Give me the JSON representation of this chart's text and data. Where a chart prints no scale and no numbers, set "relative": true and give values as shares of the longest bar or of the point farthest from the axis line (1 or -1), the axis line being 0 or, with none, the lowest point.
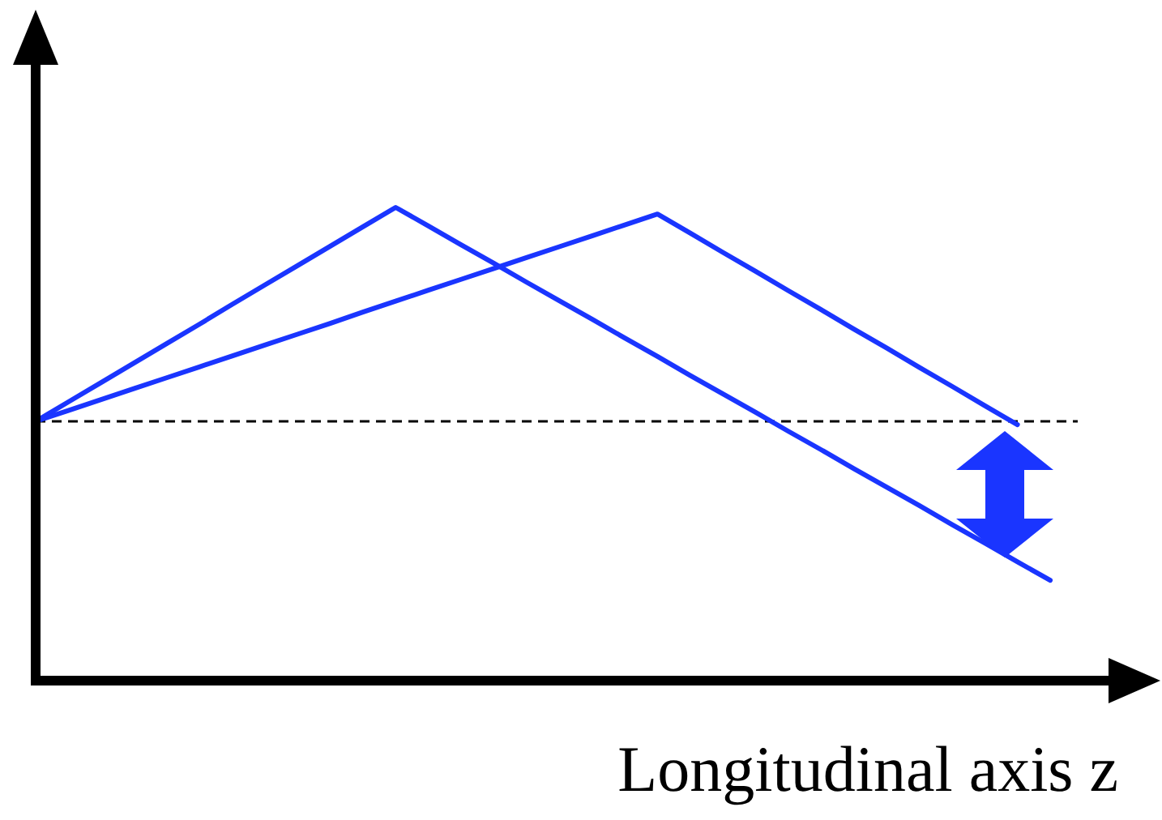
{
  "chart_data": {
    "type": "line",
    "relative": true,
    "xlabel": "Longitudinal axis z",
    "marker": "none",
    "line_style": "solid",
    "categories": [
      null,
      null,
      null,
      null,
      null,
      null,
      null,
      null,
      null,
      null,
      null,
      null,
      null,
      null,
      null,
      null,
      null,
      null,
      null,
      null,
      null,
      null,
      null,
      null,
      null,
      null,
      null,
      null,
      null,
      null,
      null,
      null
    ],
    "series": [
      {
        "color": "#1a35ff",
        "values": [
          0.548,
          0.589,
          0.63,
          0.671,
          0.712,
          0.753,
          0.795,
          0.836,
          0.877,
          0.918,
          0.959,
          1,
          0.961,
          0.921,
          0.882,
          0.842,
          0.803,
          0.764,
          0.724,
          0.685,
          0.645,
          0.606,
          0.567,
          0.527,
          0.488,
          0.448,
          0.409,
          0.37,
          0.33,
          0.291,
          0.251,
          0.212
        ]
      },
      {
        "color": "#1a35ff",
        "values": [
          0.548,
          0.571,
          0.594,
          0.617,
          0.64,
          0.663,
          0.686,
          0.709,
          0.732,
          0.755,
          0.779,
          0.802,
          0.825,
          0.848,
          0.871,
          0.894,
          0.917,
          0.94,
          0.963,
          0.986,
          0.946,
          0.905,
          0.865,
          0.824,
          0.784,
          0.743,
          0.703,
          0.662,
          0.622,
          0.581,
          0.541,
          null
        ]
      }
    ],
    "ref_lines": [
      {
        "axis": "y",
        "value": 0.548,
        "color": "#000000",
        "line_style": "dashed"
      }
    ]
  }
}
